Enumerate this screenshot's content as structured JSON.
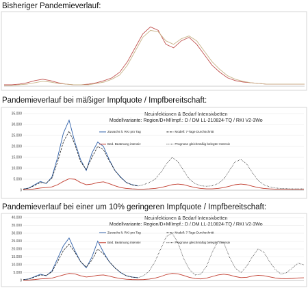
{
  "chart_data": [
    {
      "type": "line",
      "title": "Bisheriger Pandemieverlauf:",
      "ylim": [
        0,
        100
      ],
      "series": [
        {
          "color": "#c0504d",
          "style": "solid",
          "values": [
            2,
            2,
            3,
            5,
            8,
            10,
            8,
            5,
            3,
            2,
            2,
            3,
            5,
            8,
            12,
            20,
            35,
            55,
            75,
            85,
            80,
            60,
            55,
            65,
            70,
            60,
            45,
            30,
            20,
            12,
            8,
            6,
            5,
            4,
            3,
            3,
            3,
            3,
            3,
            3
          ]
        },
        {
          "color": "#c8b48a",
          "style": "solid",
          "values": [
            1,
            1,
            2,
            3,
            5,
            7,
            6,
            4,
            3,
            2,
            2,
            2,
            4,
            6,
            10,
            16,
            30,
            50,
            70,
            80,
            78,
            65,
            60,
            68,
            72,
            65,
            50,
            35,
            24,
            15,
            10,
            7,
            5,
            4,
            3,
            3,
            3,
            3,
            3,
            3
          ]
        }
      ]
    },
    {
      "type": "line",
      "title": "Pandemieverlauf bei mäßiger Impfquote / Impfbereitschaft:",
      "chart_title": "Neuinfektionen & Bedarf Intensivbetten",
      "subtitle": "Modellvariante: Region/D+M/Impf.:  D  /  DM LL-210824-TQ  /  RKI V2-3Wo",
      "ylim": [
        0,
        35000
      ],
      "yticks": [
        0,
        {
          "value": 5000,
          "label": "5.000"
        },
        {
          "value": 10000,
          "label": "10.000"
        },
        {
          "value": 15000,
          "label": "15.000"
        },
        {
          "value": 20000,
          "label": "20.000"
        },
        {
          "value": 25000,
          "label": "25.000"
        },
        {
          "value": 30000,
          "label": "30.000"
        },
        {
          "value": 35000,
          "label": "35.000"
        }
      ],
      "series": [
        {
          "name": "Zuwachs lt. RKI pro Tag",
          "color": "#2e5fa8",
          "style": "solid",
          "values": [
            500,
            1000,
            2500,
            4000,
            3000,
            6000,
            15000,
            26000,
            32000,
            22000,
            14000,
            9000,
            17000,
            22000,
            20000,
            14000,
            9000,
            6000,
            3500,
            2500,
            2000,
            null,
            null,
            null,
            null,
            null,
            null,
            null,
            null,
            null,
            null,
            null,
            null,
            null,
            null,
            null,
            null,
            null,
            null,
            null,
            null,
            null,
            null,
            null,
            null,
            null,
            null,
            null,
            null,
            null
          ]
        },
        {
          "name": "Bed. Beatmung intensiv",
          "color": "#c0392b",
          "style": "solid",
          "values": [
            200,
            300,
            600,
            1000,
            1200,
            1500,
            2500,
            4000,
            5200,
            5000,
            3500,
            2500,
            2800,
            3500,
            3800,
            3000,
            2000,
            1200,
            800,
            600,
            500,
            500,
            600,
            800,
            1200,
            1800,
            2500,
            2800,
            2500,
            1800,
            1200,
            800,
            600,
            600,
            800,
            1200,
            1800,
            2500,
            2800,
            2500,
            1800,
            1200,
            800,
            600,
            500,
            400,
            400,
            400,
            400,
            400
          ]
        },
        {
          "name": "Modell: 7-Tage Durchschnitt",
          "color": "#222222",
          "style": "dashed",
          "values": [
            500,
            900,
            2200,
            3500,
            3200,
            5500,
            13000,
            22000,
            27000,
            21000,
            13000,
            9500,
            15000,
            20000,
            18500,
            13500,
            9000,
            5800,
            3500,
            2400,
            1900,
            null,
            null,
            null,
            null,
            null,
            null,
            null,
            null,
            null,
            null,
            null,
            null,
            null,
            null,
            null,
            null,
            null,
            null,
            null,
            null,
            null,
            null,
            null,
            null,
            null,
            null,
            null,
            null,
            null
          ]
        },
        {
          "name": "Prognose gleichmäßig belegter Intensiv",
          "color": "#333333",
          "style": "dotted",
          "values": [
            null,
            null,
            null,
            null,
            null,
            null,
            null,
            null,
            null,
            null,
            null,
            null,
            null,
            null,
            null,
            null,
            null,
            null,
            null,
            null,
            1900,
            2500,
            3500,
            5000,
            8000,
            12000,
            15000,
            13000,
            9000,
            5000,
            3000,
            2000,
            1800,
            2000,
            3000,
            5000,
            9000,
            13000,
            14000,
            12000,
            8000,
            4500,
            2500,
            1500,
            1000,
            800,
            700,
            600,
            600,
            600
          ]
        }
      ]
    },
    {
      "type": "line",
      "title": "Pandemieverlauf bei einer um 10% geringeren Impfquote / Impfbereitschaft:",
      "chart_title": "Neuinfektionen & Bedarf Intensivbetten",
      "subtitle": "Modellvariante: Region/D+M/Impf.:  D  /  DM LL-210824-TQ  /  RKI V2-3Wo",
      "ylim": [
        0,
        40000
      ],
      "yticks": [
        0,
        {
          "value": 5000,
          "label": "5.000"
        },
        {
          "value": 10000,
          "label": "10.000"
        },
        {
          "value": 15000,
          "label": "15.000"
        },
        {
          "value": 20000,
          "label": "20.000"
        },
        {
          "value": 25000,
          "label": "25.000"
        },
        {
          "value": 30000,
          "label": "30.000"
        },
        {
          "value": 35000,
          "label": "35.000"
        },
        {
          "value": 40000,
          "label": "40.000"
        }
      ],
      "series": [
        {
          "name": "Zuwachs lt. RKI pro Tag",
          "color": "#2e5fa8",
          "style": "solid",
          "values": [
            500,
            1000,
            2500,
            4000,
            3000,
            6000,
            14000,
            22000,
            27000,
            19000,
            12000,
            8000,
            15000,
            25000,
            18000,
            12000,
            8000,
            5000,
            3000,
            2200,
            1800,
            null,
            null,
            null,
            null,
            null,
            null,
            null,
            null,
            null,
            null,
            null,
            null,
            null,
            null,
            null,
            null,
            null,
            null,
            null,
            null,
            null,
            null,
            null,
            null,
            null,
            null,
            null,
            null,
            null
          ]
        },
        {
          "name": "Bed. Beatmung intensiv",
          "color": "#c0392b",
          "style": "solid",
          "values": [
            200,
            300,
            600,
            1000,
            1200,
            1500,
            2500,
            3500,
            4500,
            4200,
            3000,
            2200,
            2600,
            3300,
            3500,
            2800,
            1900,
            1200,
            800,
            600,
            500,
            600,
            900,
            1500,
            2500,
            3800,
            4500,
            4200,
            3200,
            2000,
            1200,
            1000,
            1500,
            2500,
            3500,
            4000,
            3500,
            2500,
            1800,
            2000,
            2800,
            3300,
            3000,
            2300,
            1600,
            1200,
            1100,
            1300,
            1600,
            1700
          ]
        },
        {
          "name": "Modell: 7-Tage Durchschnitt",
          "color": "#222222",
          "style": "dashed",
          "values": [
            500,
            900,
            2200,
            3500,
            3200,
            5500,
            12000,
            19000,
            23000,
            18000,
            12000,
            8500,
            13000,
            20000,
            17000,
            12000,
            8000,
            5000,
            3000,
            2100,
            1700,
            null,
            null,
            null,
            null,
            null,
            null,
            null,
            null,
            null,
            null,
            null,
            null,
            null,
            null,
            null,
            null,
            null,
            null,
            null,
            null,
            null,
            null,
            null,
            null,
            null,
            null,
            null,
            null,
            null
          ]
        },
        {
          "name": "Prognose gleichmäßig belegter Intensiv",
          "color": "#333333",
          "style": "dotted",
          "values": [
            null,
            null,
            null,
            null,
            null,
            null,
            null,
            null,
            null,
            null,
            null,
            null,
            null,
            null,
            null,
            null,
            null,
            null,
            null,
            null,
            1700,
            3000,
            6000,
            12000,
            20000,
            28000,
            30000,
            24000,
            14000,
            7000,
            3500,
            4000,
            9000,
            18000,
            25000,
            24000,
            15000,
            8000,
            5000,
            9000,
            15000,
            20000,
            18000,
            12000,
            7000,
            4000,
            5000,
            8000,
            11000,
            10000
          ]
        }
      ]
    }
  ]
}
